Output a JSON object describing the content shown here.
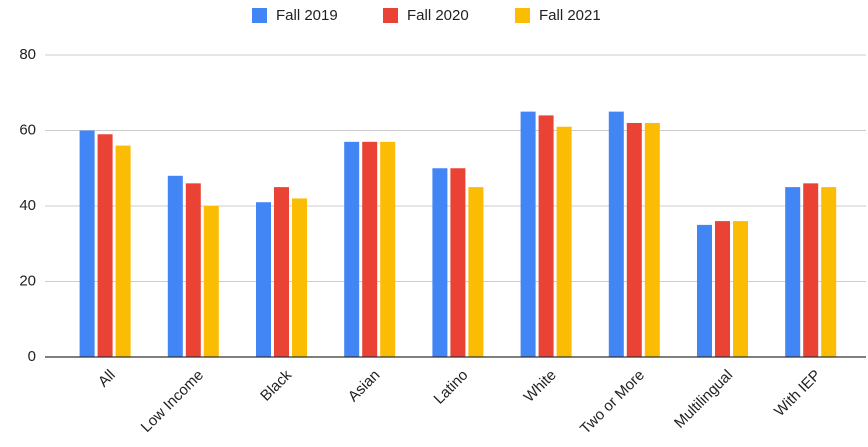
{
  "chart_data": {
    "type": "bar",
    "categories": [
      "All",
      "Low Income",
      "Black",
      "Asian",
      "Latino",
      "White",
      "Two or More",
      "Multilingual",
      "With IEP"
    ],
    "series": [
      {
        "name": "Fall 2019",
        "color": "#4285f4",
        "values": [
          60,
          48,
          41,
          57,
          50,
          65,
          65,
          35,
          45
        ]
      },
      {
        "name": "Fall 2020",
        "color": "#ea4335",
        "values": [
          59,
          46,
          45,
          57,
          50,
          64,
          62,
          36,
          46
        ]
      },
      {
        "name": "Fall 2021",
        "color": "#fbbc04",
        "values": [
          56,
          40,
          42,
          57,
          45,
          61,
          62,
          36,
          45
        ]
      }
    ],
    "ylim": [
      0,
      80
    ],
    "yticks": [
      0,
      20,
      40,
      60,
      80
    ],
    "grid": true,
    "legend": "top"
  }
}
